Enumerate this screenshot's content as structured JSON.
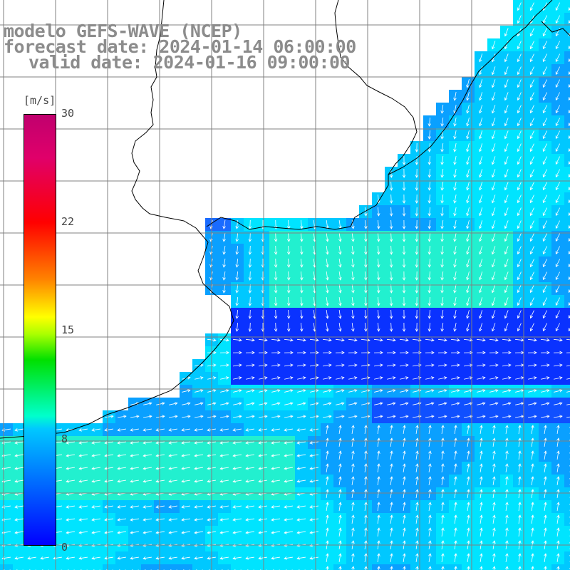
{
  "title": {
    "line1": "modelo GEFS-WAVE (NCEP)",
    "line2": "forecast date: 2024-01-14 06:00:00",
    "line3": "valid date: 2024-01-16 09:00:00"
  },
  "colorbar": {
    "unit": "[m/s]",
    "ticks": [
      "30",
      "22",
      "15",
      "8",
      "0"
    ],
    "colors": [
      "#0000ff",
      "#00c8ff",
      "#00ffcc",
      "#00e000",
      "#ffff00",
      "#ff8000",
      "#ff0000",
      "#c0006e"
    ]
  },
  "map": {
    "land_color": "#ffffff",
    "coast_color": "#000000",
    "grid_color": "#808080",
    "vector_color": "#ffffff"
  }
}
